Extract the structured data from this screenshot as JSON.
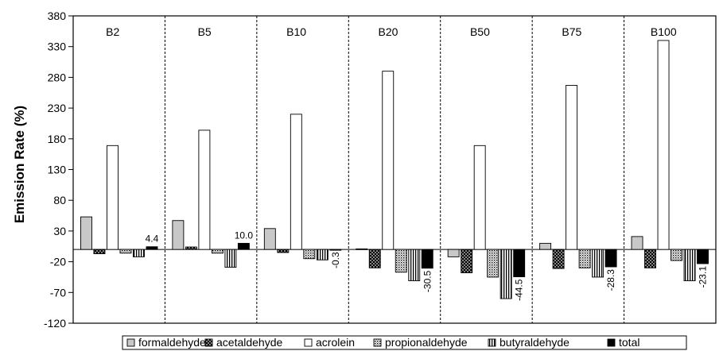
{
  "chart_data": {
    "type": "bar",
    "ylabel": "Emission Rate (%)",
    "xlabel": "",
    "ylim": [
      -120,
      380
    ],
    "yticks": [
      -120,
      -70,
      -20,
      30,
      80,
      130,
      180,
      230,
      280,
      330,
      380
    ],
    "grid": false,
    "legend_position": "bottom",
    "categories": [
      "B2",
      "B5",
      "B10",
      "B20",
      "B50",
      "B75",
      "B100"
    ],
    "series": [
      {
        "name": "formaldehyde",
        "pattern": "solid-light-gray",
        "values": [
          53,
          47,
          34,
          1,
          -12,
          10,
          21
        ]
      },
      {
        "name": "acetaldehyde",
        "pattern": "dark-crosshatch",
        "values": [
          -7,
          4,
          -5,
          -30,
          -38,
          -31,
          -30
        ]
      },
      {
        "name": "acrolein",
        "pattern": "white",
        "values": [
          169,
          194,
          220,
          290,
          169,
          267,
          340
        ]
      },
      {
        "name": "propionaldehyde",
        "pattern": "dotted",
        "values": [
          -6,
          -6,
          -15,
          -37,
          -45,
          -30,
          -18
        ]
      },
      {
        "name": "butyraldehyde",
        "pattern": "vertical-stripes",
        "values": [
          -12,
          -29,
          -17,
          -51,
          -80,
          -45,
          -51
        ]
      },
      {
        "name": "total",
        "pattern": "solid-black",
        "values": [
          4.4,
          10.0,
          -0.3,
          -30.5,
          -44.5,
          -28.3,
          -23.1
        ],
        "labels": [
          "4.4",
          "10.0",
          "-0.3",
          "-30.5",
          "-44.5",
          "-28.3",
          "-23.1"
        ]
      }
    ]
  },
  "colors": {
    "formaldehyde": "#c8c8c8",
    "acetaldehyde": "#3a3a3a",
    "acrolein": "#ffffff",
    "total": "#000000"
  }
}
